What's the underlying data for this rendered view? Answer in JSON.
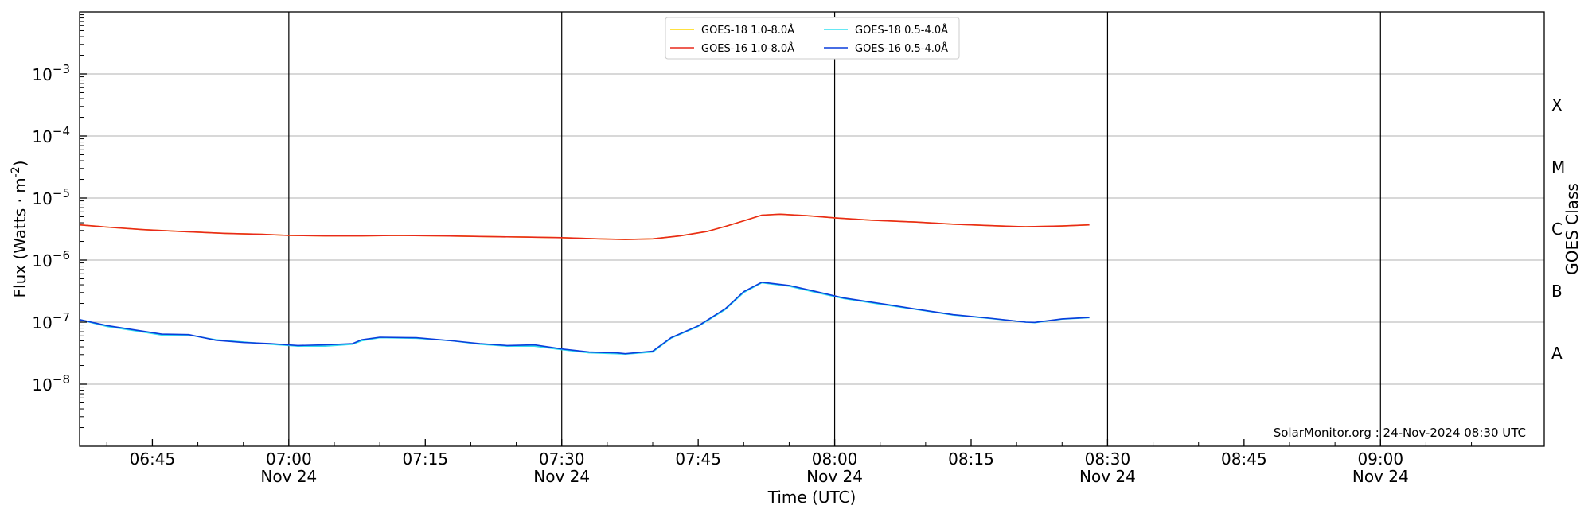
{
  "chart_data": {
    "type": "line",
    "title": "",
    "xlabel": "Time (UTC)",
    "ylabel": "Flux (Watts · m",
    "ylabel_sup": "-2",
    "ylabel_close": ")",
    "y2label": "GOES Class",
    "yscale": "log",
    "ylim": [
      1e-09,
      0.01
    ],
    "xlim": [
      "06:37",
      "09:18"
    ],
    "grid": {
      "horizontal": true,
      "vertical_major_lines": true
    },
    "legend_position": "top-center",
    "x_ticks": [
      {
        "t": "06:45",
        "time": "06:45",
        "date": ""
      },
      {
        "t": "07:00",
        "time": "07:00",
        "date": "Nov 24"
      },
      {
        "t": "07:15",
        "time": "07:15",
        "date": ""
      },
      {
        "t": "07:30",
        "time": "07:30",
        "date": "Nov 24"
      },
      {
        "t": "07:45",
        "time": "07:45",
        "date": ""
      },
      {
        "t": "08:00",
        "time": "08:00",
        "date": "Nov 24"
      },
      {
        "t": "08:15",
        "time": "08:15",
        "date": ""
      },
      {
        "t": "08:30",
        "time": "08:30",
        "date": "Nov 24"
      },
      {
        "t": "08:45",
        "time": "08:45",
        "date": ""
      },
      {
        "t": "09:00",
        "time": "09:00",
        "date": "Nov 24"
      }
    ],
    "vertical_lines": [
      "07:00",
      "07:30",
      "08:00",
      "08:30",
      "09:00"
    ],
    "y_ticks": [
      {
        "exp": -3,
        "base": "10",
        "sup": "−3"
      },
      {
        "exp": -4,
        "base": "10",
        "sup": "−4"
      },
      {
        "exp": -5,
        "base": "10",
        "sup": "−5"
      },
      {
        "exp": -6,
        "base": "10",
        "sup": "−6"
      },
      {
        "exp": -7,
        "base": "10",
        "sup": "−7"
      },
      {
        "exp": -8,
        "base": "10",
        "sup": "−8"
      }
    ],
    "goes_classes": [
      {
        "label": "X",
        "exp": -3.5
      },
      {
        "label": "M",
        "exp": -4.5
      },
      {
        "label": "C",
        "exp": -5.5
      },
      {
        "label": "B",
        "exp": -6.5
      },
      {
        "label": "A",
        "exp": -7.5
      }
    ],
    "series": [
      {
        "name": "GOES-18 1.0-8.0Å",
        "color": "#ffd700",
        "width": 1.6,
        "x": [
          "06:37",
          "06:40",
          "06:44",
          "06:48",
          "06:53",
          "06:57",
          "07:00",
          "07:04",
          "07:08",
          "07:12",
          "07:17",
          "07:21",
          "07:26",
          "07:30",
          "07:34",
          "07:37",
          "07:40",
          "07:43",
          "07:46",
          "07:48",
          "07:50",
          "07:52",
          "07:54",
          "07:57",
          "08:00",
          "08:04",
          "08:09",
          "08:13",
          "08:17",
          "08:21",
          "08:25",
          "08:28"
        ],
        "values": [
          3.7e-06,
          3.4e-06,
          3.1e-06,
          2.9e-06,
          2.7e-06,
          2.6e-06,
          2.5e-06,
          2.45e-06,
          2.45e-06,
          2.5e-06,
          2.45e-06,
          2.4e-06,
          2.35e-06,
          2.3e-06,
          2.2e-06,
          2.15e-06,
          2.2e-06,
          2.45e-06,
          2.9e-06,
          3.5e-06,
          4.3e-06,
          5.3e-06,
          5.5e-06,
          5.2e-06,
          4.8e-06,
          4.4e-06,
          4.1e-06,
          3.8e-06,
          3.6e-06,
          3.45e-06,
          3.55e-06,
          3.7e-06
        ]
      },
      {
        "name": "GOES-16 1.0-8.0Å",
        "color": "#e8291c",
        "width": 1.6,
        "x": [
          "06:37",
          "06:40",
          "06:44",
          "06:48",
          "06:53",
          "06:57",
          "07:00",
          "07:04",
          "07:08",
          "07:12",
          "07:17",
          "07:21",
          "07:26",
          "07:30",
          "07:34",
          "07:37",
          "07:40",
          "07:43",
          "07:46",
          "07:48",
          "07:50",
          "07:52",
          "07:54",
          "07:57",
          "08:00",
          "08:04",
          "08:09",
          "08:13",
          "08:17",
          "08:21",
          "08:25",
          "08:28"
        ],
        "values": [
          3.7e-06,
          3.4e-06,
          3.1e-06,
          2.9e-06,
          2.7e-06,
          2.6e-06,
          2.5e-06,
          2.45e-06,
          2.45e-06,
          2.5e-06,
          2.45e-06,
          2.4e-06,
          2.35e-06,
          2.3e-06,
          2.2e-06,
          2.15e-06,
          2.2e-06,
          2.45e-06,
          2.9e-06,
          3.5e-06,
          4.3e-06,
          5.3e-06,
          5.5e-06,
          5.2e-06,
          4.8e-06,
          4.4e-06,
          4.1e-06,
          3.8e-06,
          3.6e-06,
          3.45e-06,
          3.55e-06,
          3.7e-06
        ]
      },
      {
        "name": "GOES-18 0.5-4.0Å",
        "color": "#33e0f0",
        "width": 1.6,
        "x": [
          "06:37",
          "06:40",
          "06:43",
          "06:46",
          "06:49",
          "06:52",
          "06:55",
          "06:58",
          "07:01",
          "07:04",
          "07:07",
          "07:08",
          "07:10",
          "07:14",
          "07:18",
          "07:21",
          "07:24",
          "07:27",
          "07:30",
          "07:33",
          "07:36",
          "07:37",
          "07:40",
          "07:42",
          "07:45",
          "07:48",
          "07:50",
          "07:52",
          "07:55",
          "07:58",
          "08:01",
          "08:05",
          "08:09",
          "08:13",
          "08:17",
          "08:21",
          "08:22",
          "08:25",
          "08:28"
        ],
        "values": [
          1.1e-07,
          8.5e-08,
          7.3e-08,
          6.2e-08,
          6.2e-08,
          5.2e-08,
          4.8e-08,
          4.4e-08,
          4.1e-08,
          4.1e-08,
          4.4e-08,
          5e-08,
          5.6e-08,
          5.5e-08,
          5e-08,
          4.4e-08,
          4.1e-08,
          4.1e-08,
          3.6e-08,
          3.2e-08,
          3.1e-08,
          3.05e-08,
          3.3e-08,
          5.5e-08,
          8.5e-08,
          1.6e-07,
          3e-07,
          4.3e-07,
          3.8e-07,
          3e-07,
          2.4e-07,
          1.95e-07,
          1.6e-07,
          1.3e-07,
          1.15e-07,
          1e-07,
          9.8e-08,
          1.12e-07,
          1.18e-07
        ]
      },
      {
        "name": "GOES-16 0.5-4.0Å",
        "color": "#0a3ddb",
        "width": 1.6,
        "x": [
          "06:37",
          "06:40",
          "06:43",
          "06:46",
          "06:49",
          "06:52",
          "06:55",
          "06:58",
          "07:01",
          "07:04",
          "07:07",
          "07:08",
          "07:10",
          "07:14",
          "07:18",
          "07:21",
          "07:24",
          "07:27",
          "07:30",
          "07:33",
          "07:36",
          "07:37",
          "07:40",
          "07:42",
          "07:45",
          "07:48",
          "07:50",
          "07:52",
          "07:55",
          "07:58",
          "08:01",
          "08:05",
          "08:09",
          "08:13",
          "08:17",
          "08:21",
          "08:22",
          "08:25",
          "08:28"
        ],
        "values": [
          1.1e-07,
          8.8e-08,
          7.5e-08,
          6.4e-08,
          6.3e-08,
          5.1e-08,
          4.7e-08,
          4.5e-08,
          4.2e-08,
          4.3e-08,
          4.5e-08,
          5.2e-08,
          5.7e-08,
          5.6e-08,
          5e-08,
          4.5e-08,
          4.2e-08,
          4.3e-08,
          3.7e-08,
          3.3e-08,
          3.2e-08,
          3.1e-08,
          3.4e-08,
          5.6e-08,
          8.7e-08,
          1.65e-07,
          3.1e-07,
          4.4e-07,
          3.9e-07,
          3.1e-07,
          2.45e-07,
          2e-07,
          1.62e-07,
          1.32e-07,
          1.16e-07,
          1e-07,
          9.9e-08,
          1.13e-07,
          1.19e-07
        ]
      }
    ],
    "legend_order": [
      0,
      2,
      1,
      3
    ],
    "credit": "SolarMonitor.org : 24-Nov-2024 08:30 UTC"
  }
}
